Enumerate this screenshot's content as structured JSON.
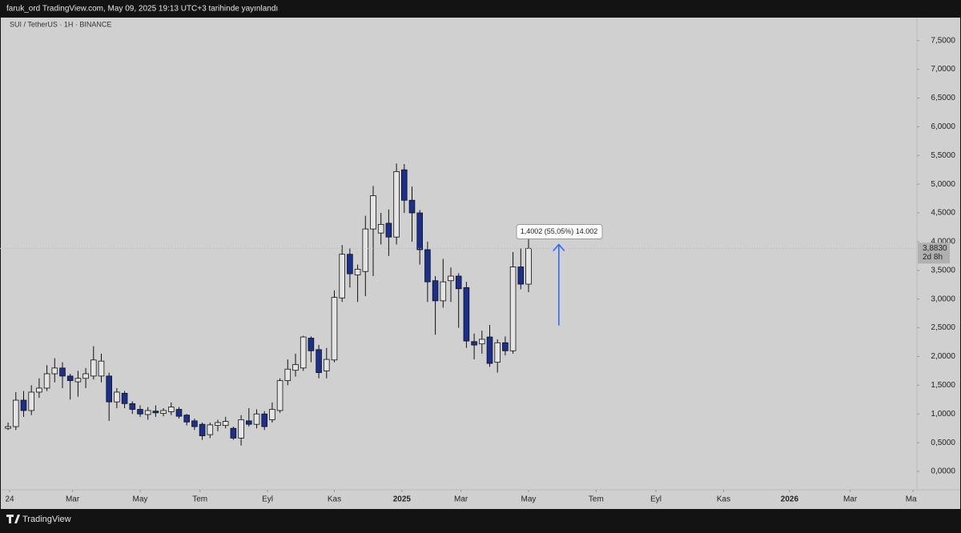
{
  "header": "faruk_ord TradingView.com, May 09, 2025 19:13 UTC+3 tarihinde yayınlandı",
  "footer": "TradingView",
  "chart_data": {
    "type": "candlestick",
    "title": "SUI / TetherUS · 1H · BINANCE",
    "up_color": "#e4e4e4",
    "down_color": "#1b2f8f",
    "open": [
      0.75,
      0.78,
      1.24,
      1.06,
      1.38,
      1.45,
      1.7,
      1.8,
      1.66,
      1.56,
      1.62,
      1.66,
      1.66,
      1.66,
      1.21,
      1.36,
      1.18,
      1.08,
      0.99,
      1.05,
      1.01,
      1.04,
      1.08,
      0.98,
      0.88,
      0.82,
      0.64,
      0.8,
      0.8,
      0.75,
      0.58,
      0.88,
      0.82,
      1.0,
      0.9,
      1.06,
      1.58,
      1.76,
      1.8,
      2.32,
      2.12,
      1.75,
      1.94,
      3.02,
      3.78,
      3.42,
      3.48,
      4.22,
      4.15,
      4.32,
      4.08,
      5.25,
      4.72,
      4.5,
      3.86,
      3.32,
      2.97,
      3.32,
      3.4,
      3.2,
      2.26,
      2.22,
      2.34,
      1.9,
      2.24,
      2.1,
      3.56,
      3.26
    ],
    "high": [
      0.85,
      1.38,
      1.4,
      1.5,
      1.62,
      1.85,
      1.97,
      1.9,
      1.7,
      1.75,
      1.8,
      2.18,
      2.05,
      1.72,
      1.45,
      1.4,
      1.22,
      1.15,
      1.12,
      1.15,
      1.1,
      1.2,
      1.12,
      1.0,
      0.92,
      0.85,
      0.85,
      0.9,
      0.95,
      0.78,
      0.98,
      1.1,
      1.08,
      1.05,
      1.2,
      1.62,
      1.95,
      2.05,
      2.36,
      2.35,
      2.2,
      2.15,
      3.15,
      3.94,
      3.88,
      3.6,
      4.45,
      4.97,
      4.5,
      4.56,
      5.36,
      5.35,
      4.96,
      4.55,
      4.0,
      3.4,
      3.7,
      3.55,
      3.45,
      3.3,
      2.4,
      2.45,
      2.55,
      2.3,
      2.35,
      3.82,
      3.88,
      4.08
    ],
    "low": [
      0.72,
      0.72,
      0.95,
      0.98,
      1.28,
      1.4,
      1.55,
      1.45,
      1.25,
      1.3,
      1.45,
      1.6,
      1.55,
      0.88,
      1.1,
      1.1,
      1.0,
      0.95,
      0.9,
      0.95,
      0.96,
      0.98,
      0.92,
      0.8,
      0.72,
      0.55,
      0.58,
      0.7,
      0.75,
      0.55,
      0.45,
      0.78,
      0.75,
      0.72,
      0.85,
      1.02,
      1.5,
      1.65,
      1.75,
      1.9,
      1.62,
      1.62,
      1.9,
      2.95,
      3.2,
      2.95,
      3.05,
      3.4,
      3.95,
      3.75,
      3.95,
      4.5,
      4.0,
      3.6,
      2.95,
      2.38,
      2.85,
      2.95,
      2.5,
      2.15,
      1.95,
      2.05,
      1.82,
      1.72,
      2.02,
      2.05,
      3.17,
      3.12
    ],
    "close": [
      0.78,
      1.24,
      1.06,
      1.38,
      1.45,
      1.7,
      1.8,
      1.66,
      1.58,
      1.62,
      1.7,
      1.94,
      1.92,
      1.21,
      1.38,
      1.18,
      1.08,
      1.0,
      1.06,
      1.02,
      1.06,
      1.12,
      0.96,
      0.86,
      0.78,
      0.62,
      0.81,
      0.85,
      0.87,
      0.58,
      0.9,
      0.82,
      1.0,
      0.78,
      1.08,
      1.58,
      1.78,
      1.86,
      2.34,
      2.1,
      1.72,
      1.95,
      3.03,
      3.78,
      3.44,
      3.52,
      4.22,
      4.8,
      4.3,
      4.08,
      5.22,
      4.72,
      4.5,
      3.86,
      3.3,
      2.97,
      3.3,
      3.4,
      3.18,
      2.27,
      2.2,
      2.3,
      1.88,
      2.24,
      2.1,
      3.56,
      3.26,
      3.883
    ],
    "ylim": [
      -0.32,
      7.9
    ],
    "yticks": [
      {
        "value": 0,
        "label": "0,0000"
      },
      {
        "value": 0.5,
        "label": "0,5000"
      },
      {
        "value": 1,
        "label": "1,0000"
      },
      {
        "value": 1.5,
        "label": "1,5000"
      },
      {
        "value": 2,
        "label": "2,0000"
      },
      {
        "value": 2.5,
        "label": "2,5000"
      },
      {
        "value": 3,
        "label": "3,0000"
      },
      {
        "value": 3.5,
        "label": "3,5000"
      },
      {
        "value": 4,
        "label": "4,0000"
      },
      {
        "value": 4.5,
        "label": "4,5000"
      },
      {
        "value": 5,
        "label": "5,0000"
      },
      {
        "value": 5.5,
        "label": "5,5000"
      },
      {
        "value": 6,
        "label": "6,0000"
      },
      {
        "value": 6.5,
        "label": "6,5000"
      },
      {
        "value": 7,
        "label": "7,0000"
      },
      {
        "value": 7.5,
        "label": "7,5000"
      }
    ],
    "xlim": [
      -1.04,
      117
    ],
    "xticks": [
      {
        "value": 0.2,
        "label": "24"
      },
      {
        "value": 8.3,
        "label": "Mar"
      },
      {
        "value": 17.0,
        "label": "May"
      },
      {
        "value": 24.7,
        "label": "Tem"
      },
      {
        "value": 33.4,
        "label": "Eyl"
      },
      {
        "value": 42.0,
        "label": "Kas"
      },
      {
        "value": 50.7,
        "label": "2025"
      },
      {
        "value": 58.3,
        "label": "Mar"
      },
      {
        "value": 67.0,
        "label": "May"
      },
      {
        "value": 75.7,
        "label": "Tem"
      },
      {
        "value": 83.4,
        "label": "Eyl"
      },
      {
        "value": 92.1,
        "label": "Kas"
      },
      {
        "value": 100.6,
        "label": "2026"
      },
      {
        "value": 108.4,
        "label": "Mar"
      },
      {
        "value": 116.5,
        "label": "May"
      }
    ],
    "last_price": {
      "value": 3.883,
      "label": "3,8830"
    },
    "countdown": "2d 8h",
    "annotation": "1,4002 (55,05%) 14.002",
    "arrow": {
      "x": 70.9,
      "from": 2.54,
      "to": 3.95,
      "color": "#2962ff"
    }
  }
}
